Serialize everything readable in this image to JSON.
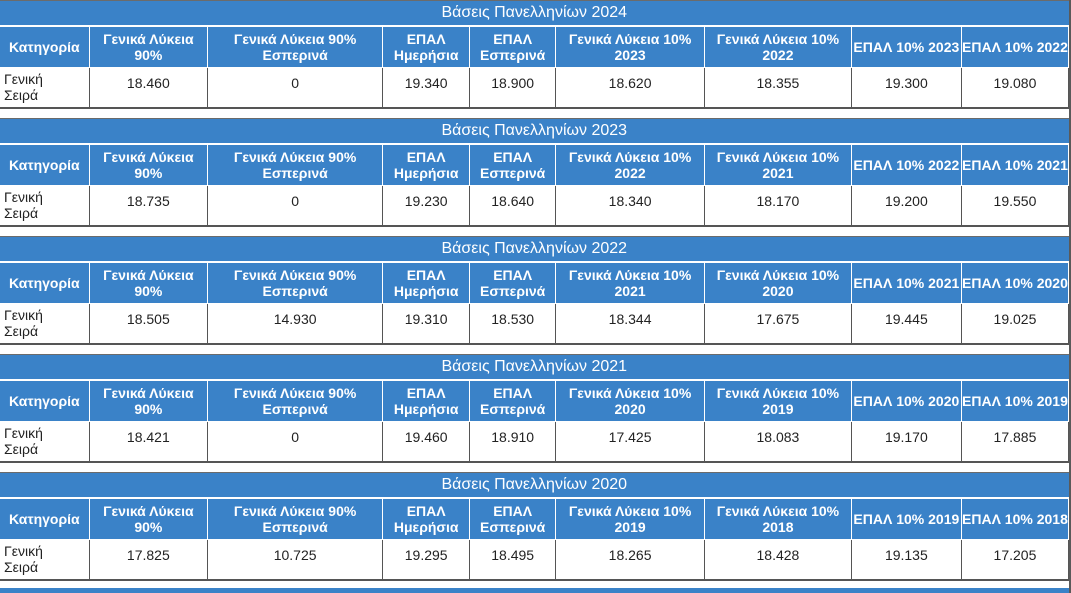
{
  "blocks": [
    {
      "title": "Βάσεις Πανελληνίων 2024",
      "headers": [
        "Κατηγορία",
        "Γενικά Λύκεια 90%",
        "Γενικά Λύκεια 90% Εσπερινά",
        "ΕΠΑΛ Ημερήσια",
        "ΕΠΑΛ Εσπερινά",
        "Γενικά Λύκεια 10% 2023",
        "Γενικά Λύκεια 10% 2022",
        "ΕΠΑΛ 10% 2023",
        "ΕΠΑΛ 10% 2022"
      ],
      "category": [
        "Γενική",
        "Σειρά"
      ],
      "values": [
        "18.460",
        "0",
        "19.340",
        "18.900",
        "18.620",
        "18.355",
        "19.300",
        "19.080"
      ]
    },
    {
      "title": "Βάσεις Πανελληνίων 2023",
      "headers": [
        "Κατηγορία",
        "Γενικά Λύκεια 90%",
        "Γενικά Λύκεια 90% Εσπερινά",
        "ΕΠΑΛ Ημερήσια",
        "ΕΠΑΛ Εσπερινά",
        "Γενικά Λύκεια 10% 2022",
        "Γενικά Λύκεια 10% 2021",
        "ΕΠΑΛ 10% 2022",
        "ΕΠΑΛ 10% 2021"
      ],
      "category": [
        "Γενική",
        "Σειρά"
      ],
      "values": [
        "18.735",
        "0",
        "19.230",
        "18.640",
        "18.340",
        "18.170",
        "19.200",
        "19.550"
      ]
    },
    {
      "title": "Βάσεις Πανελληνίων 2022",
      "headers": [
        "Κατηγορία",
        "Γενικά Λύκεια 90%",
        "Γενικά Λύκεια 90% Εσπερινά",
        "ΕΠΑΛ Ημερήσια",
        "ΕΠΑΛ Εσπερινά",
        "Γενικά Λύκεια 10% 2021",
        "Γενικά Λύκεια 10% 2020",
        "ΕΠΑΛ 10% 2021",
        "ΕΠΑΛ 10% 2020"
      ],
      "category": [
        "Γενική",
        "Σειρά"
      ],
      "values": [
        "18.505",
        "14.930",
        "19.310",
        "18.530",
        "18.344",
        "17.675",
        "19.445",
        "19.025"
      ]
    },
    {
      "title": "Βάσεις Πανελληνίων 2021",
      "headers": [
        "Κατηγορία",
        "Γενικά Λύκεια 90%",
        "Γενικά Λύκεια 90% Εσπερινά",
        "ΕΠΑΛ Ημερήσια",
        "ΕΠΑΛ Εσπερινά",
        "Γενικά Λύκεια 10% 2020",
        "Γενικά Λύκεια 10% 2019",
        "ΕΠΑΛ 10% 2020",
        "ΕΠΑΛ 10% 2019"
      ],
      "category": [
        "Γενική",
        "Σειρά"
      ],
      "values": [
        "18.421",
        "0",
        "19.460",
        "18.910",
        "17.425",
        "18.083",
        "19.170",
        "17.885"
      ]
    },
    {
      "title": "Βάσεις Πανελληνίων 2020",
      "headers": [
        "Κατηγορία",
        "Γενικά Λύκεια 90%",
        "Γενικά Λύκεια 90% Εσπερινά",
        "ΕΠΑΛ Ημερήσια",
        "ΕΠΑΛ Εσπερινά",
        "Γενικά Λύκεια 10% 2019",
        "Γενικά Λύκεια 10% 2018",
        "ΕΠΑΛ 10% 2019",
        "ΕΠΑΛ 10% 2018"
      ],
      "category": [
        "Γενική",
        "Σειρά"
      ],
      "values": [
        "17.825",
        "10.725",
        "19.295",
        "18.495",
        "18.265",
        "18.428",
        "19.135",
        "17.205"
      ]
    }
  ],
  "colors": {
    "header_bg": "#3a82c8",
    "header_text": "#ffffff",
    "cell_border": "#555555"
  }
}
